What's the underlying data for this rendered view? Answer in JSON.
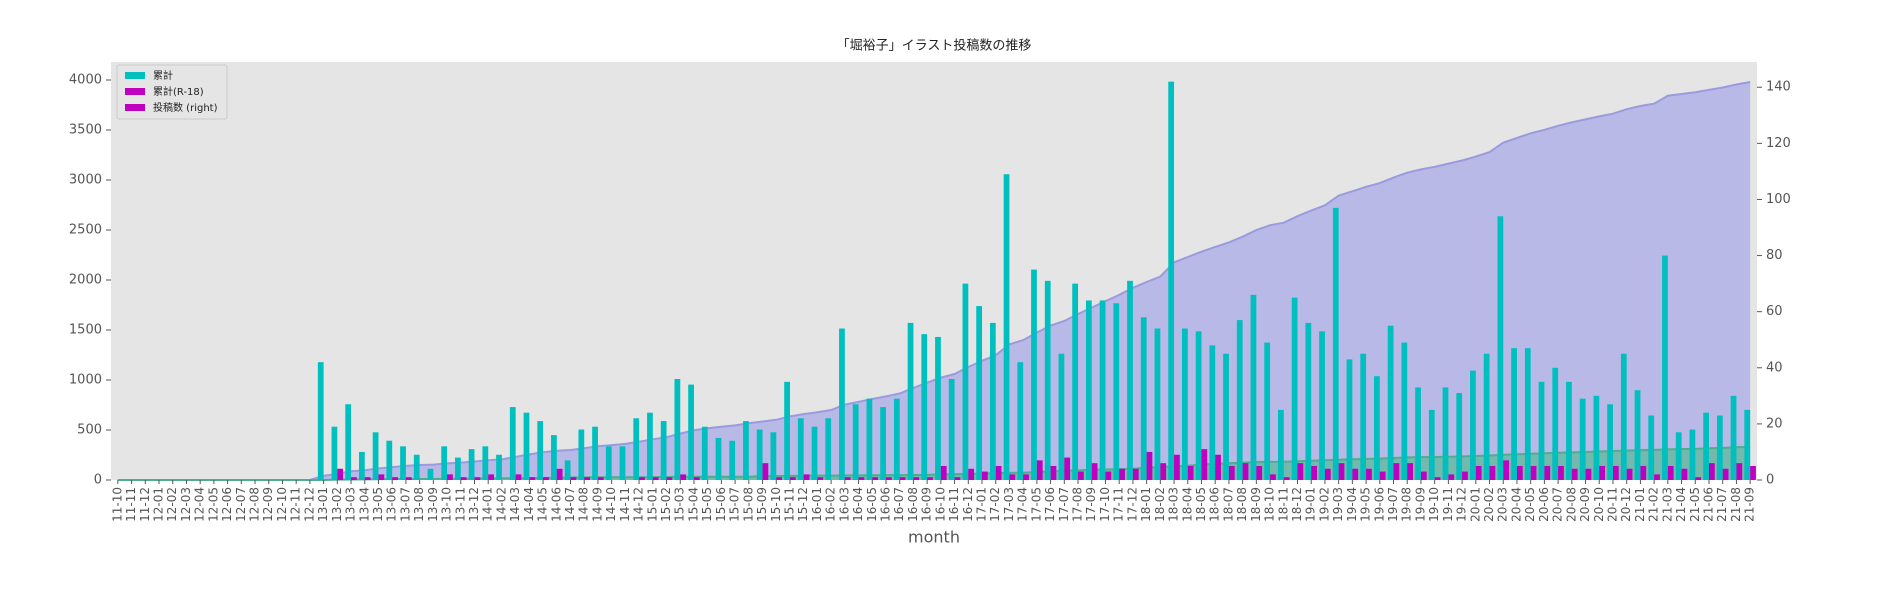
{
  "chart_data": {
    "type": "combo",
    "title": "「堀裕子」イラスト投稿数の推移",
    "xlabel": "month",
    "categories": [
      "11-10",
      "11-11",
      "11-12",
      "12-01",
      "12-02",
      "12-03",
      "12-04",
      "12-05",
      "12-06",
      "12-07",
      "12-08",
      "12-09",
      "12-10",
      "12-11",
      "12-12",
      "13-01",
      "13-02",
      "13-03",
      "13-04",
      "13-05",
      "13-06",
      "13-07",
      "13-08",
      "13-09",
      "13-10",
      "13-11",
      "13-12",
      "14-01",
      "14-02",
      "14-03",
      "14-04",
      "14-05",
      "14-06",
      "14-07",
      "14-08",
      "14-09",
      "14-10",
      "14-11",
      "14-12",
      "15-01",
      "15-02",
      "15-03",
      "15-04",
      "15-05",
      "15-06",
      "15-07",
      "15-08",
      "15-09",
      "15-10",
      "15-11",
      "15-12",
      "16-01",
      "16-02",
      "16-03",
      "16-04",
      "16-05",
      "16-06",
      "16-07",
      "16-08",
      "16-09",
      "16-10",
      "16-11",
      "16-12",
      "17-01",
      "17-02",
      "17-03",
      "17-04",
      "17-05",
      "17-06",
      "17-07",
      "17-08",
      "17-09",
      "17-10",
      "17-11",
      "17-12",
      "18-01",
      "18-02",
      "18-03",
      "18-04",
      "18-05",
      "18-06",
      "18-07",
      "18-08",
      "18-09",
      "18-10",
      "18-11",
      "18-12",
      "19-01",
      "19-02",
      "19-03",
      "19-04",
      "19-05",
      "19-06",
      "19-07",
      "19-08",
      "19-09",
      "19-10",
      "19-11",
      "19-12",
      "20-01",
      "20-02",
      "20-03",
      "20-04",
      "20-05",
      "20-06",
      "20-07",
      "20-08",
      "20-09",
      "20-10",
      "20-11",
      "20-12",
      "21-01",
      "21-02",
      "21-03",
      "21-04",
      "21-05",
      "21-06",
      "21-07",
      "21-08",
      "21-09"
    ],
    "series": [
      {
        "kind": "area",
        "axis": "y",
        "color": "#a9aae8",
        "line_color": "#9a9bdf",
        "values": [
          0,
          0,
          0,
          0,
          0,
          0,
          0,
          0,
          0,
          0,
          0,
          0,
          0,
          0,
          0,
          42,
          61,
          88,
          98,
          115,
          129,
          141,
          150,
          154,
          166,
          174,
          185,
          197,
          206,
          232,
          256,
          277,
          293,
          300,
          318,
          337,
          349,
          361,
          383,
          407,
          428,
          464,
          498,
          517,
          532,
          546,
          567,
          585,
          602,
          637,
          659,
          678,
          700,
          754,
          781,
          810,
          836,
          865,
          921,
          973,
          1024,
          1060,
          1130,
          1192,
          1248,
          1357,
          1399,
          1474,
          1545,
          1590,
          1660,
          1724,
          1788,
          1851,
          1922,
          1980,
          2034,
          2176,
          2230,
          2283,
          2331,
          2376,
          2433,
          2499,
          2548,
          2573,
          2638,
          2694,
          2747,
          2844,
          2887,
          2932,
          2969,
          3024,
          3073,
          3106,
          3131,
          3164,
          3195,
          3234,
          3279,
          3373,
          3420,
          3467,
          3502,
          3542,
          3577,
          3606,
          3636,
          3663,
          3708,
          3740,
          3763,
          3843,
          3860,
          3878,
          3902,
          3925,
          3955,
          3980
        ]
      },
      {
        "kind": "area",
        "axis": "y",
        "color": "#5fb89a",
        "line_color": "#4fae8c",
        "values": [
          0,
          0,
          0,
          0,
          0,
          0,
          0,
          0,
          0,
          0,
          0,
          0,
          0,
          0,
          0,
          0,
          4,
          5,
          6,
          8,
          9,
          10,
          10,
          10,
          12,
          13,
          14,
          16,
          16,
          18,
          19,
          20,
          24,
          25,
          26,
          27,
          27,
          27,
          28,
          29,
          30,
          32,
          33,
          33,
          33,
          33,
          33,
          39,
          40,
          41,
          43,
          44,
          44,
          45,
          46,
          47,
          48,
          49,
          50,
          51,
          56,
          57,
          61,
          64,
          69,
          71,
          73,
          80,
          85,
          93,
          96,
          102,
          105,
          109,
          113,
          123,
          129,
          138,
          143,
          154,
          163,
          168,
          174,
          179,
          181,
          182,
          188,
          193,
          197,
          203,
          207,
          211,
          214,
          220,
          226,
          229,
          230,
          232,
          235,
          240,
          245,
          252,
          257,
          262,
          267,
          272,
          276,
          280,
          285,
          290,
          294,
          299,
          301,
          306,
          310,
          311,
          317,
          321,
          327,
          332
        ]
      },
      {
        "kind": "bar",
        "axis": "y2",
        "color": "#00bfbf",
        "slot": 0,
        "values": [
          0,
          0,
          0,
          0,
          0,
          0,
          0,
          0,
          0,
          0,
          0,
          0,
          0,
          0,
          0,
          42,
          19,
          27,
          10,
          17,
          14,
          12,
          9,
          4,
          12,
          8,
          11,
          12,
          9,
          26,
          24,
          21,
          16,
          7,
          18,
          19,
          12,
          12,
          22,
          24,
          21,
          36,
          34,
          19,
          15,
          14,
          21,
          18,
          17,
          35,
          22,
          19,
          22,
          54,
          27,
          29,
          26,
          29,
          56,
          52,
          51,
          36,
          70,
          62,
          56,
          109,
          42,
          75,
          71,
          45,
          70,
          64,
          64,
          63,
          71,
          58,
          54,
          142,
          54,
          53,
          48,
          45,
          57,
          66,
          49,
          25,
          65,
          56,
          53,
          97,
          43,
          45,
          37,
          55,
          49,
          33,
          25,
          33,
          31,
          39,
          45,
          94,
          47,
          47,
          35,
          40,
          35,
          29,
          30,
          27,
          45,
          32,
          23,
          80,
          17,
          18,
          24,
          23,
          30,
          25
        ]
      },
      {
        "kind": "bar",
        "axis": "y2",
        "color": "#bf00bf",
        "slot": 1,
        "values": [
          0,
          0,
          0,
          0,
          0,
          0,
          0,
          0,
          0,
          0,
          0,
          0,
          0,
          0,
          0,
          0,
          4,
          1,
          1,
          2,
          1,
          1,
          0,
          0,
          2,
          1,
          1,
          2,
          0,
          2,
          1,
          1,
          4,
          1,
          1,
          1,
          0,
          0,
          1,
          1,
          1,
          2,
          1,
          0,
          0,
          0,
          0,
          6,
          1,
          1,
          2,
          1,
          0,
          1,
          1,
          1,
          1,
          1,
          1,
          1,
          5,
          1,
          4,
          3,
          5,
          2,
          2,
          7,
          5,
          8,
          3,
          6,
          3,
          4,
          4,
          10,
          6,
          9,
          5,
          11,
          9,
          5,
          6,
          5,
          2,
          1,
          6,
          5,
          4,
          6,
          4,
          4,
          3,
          6,
          6,
          3,
          1,
          2,
          3,
          5,
          5,
          7,
          5,
          5,
          5,
          5,
          4,
          4,
          5,
          5,
          4,
          5,
          2,
          5,
          4,
          1,
          6,
          4,
          6,
          5
        ]
      }
    ],
    "legend": {
      "loc": "upper left",
      "entries": [
        {
          "label": "累計",
          "color": "#00bfbf"
        },
        {
          "label": "累計(R-18)",
          "color": "#bf00bf"
        },
        {
          "label": "投稿数 (right)",
          "color": "#bf00bf"
        }
      ]
    },
    "ylim": [
      0,
      4180
    ],
    "yticks": [
      0,
      500,
      1000,
      1500,
      2000,
      2500,
      3000,
      3500,
      4000
    ],
    "y2lim": [
      0,
      149
    ],
    "y2ticks": [
      0,
      20,
      40,
      60,
      80,
      100,
      120,
      140
    ]
  }
}
